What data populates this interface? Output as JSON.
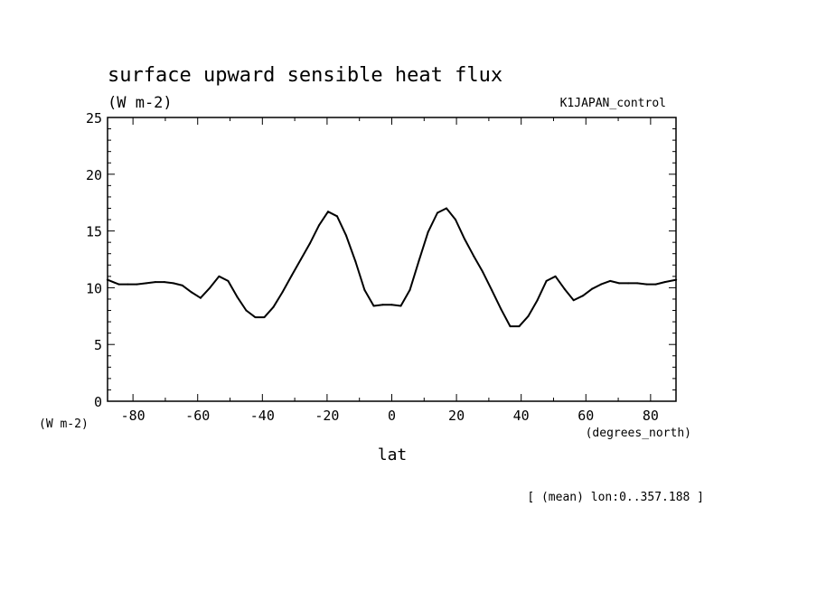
{
  "chart_data": {
    "type": "line",
    "title": "surface upward sensible heat flux",
    "units": "(W m-2)",
    "run_label": "K1JAPAN_control",
    "xlabel": "lat",
    "x_units": "(degrees_north)",
    "y_units": "(W m-2)",
    "footnote": "[ (mean) lon:0..357.188 ]",
    "xlim": [
      -87.86,
      87.86
    ],
    "ylim": [
      0,
      25
    ],
    "x_ticks": [
      {
        "value": -80,
        "label": "-80"
      },
      {
        "value": -60,
        "label": "-60"
      },
      {
        "value": -40,
        "label": "-40"
      },
      {
        "value": -20,
        "label": "-20"
      },
      {
        "value": 0,
        "label": "0"
      },
      {
        "value": 20,
        "label": "20"
      },
      {
        "value": 40,
        "label": "40"
      },
      {
        "value": 60,
        "label": "60"
      },
      {
        "value": 80,
        "label": "80"
      }
    ],
    "y_ticks": [
      {
        "value": 0,
        "label": "0"
      },
      {
        "value": 5,
        "label": "5"
      },
      {
        "value": 10,
        "label": "10"
      },
      {
        "value": 15,
        "label": "15"
      },
      {
        "value": 20,
        "label": "20"
      },
      {
        "value": 25,
        "label": "25"
      }
    ],
    "grid": false,
    "series": [
      {
        "x": [
          -87.9,
          -84.4,
          -81.6,
          -78.8,
          -75.9,
          -73.1,
          -70.3,
          -67.5,
          -64.7,
          -61.9,
          -59.1,
          -56.2,
          -53.4,
          -50.6,
          -47.8,
          -45.0,
          -42.2,
          -39.4,
          -36.6,
          -33.8,
          -30.9,
          -28.1,
          -25.3,
          -22.5,
          -19.7,
          -16.9,
          -14.1,
          -11.2,
          -8.4,
          -5.6,
          -2.8,
          0.0,
          2.8,
          5.6,
          8.4,
          11.2,
          14.1,
          16.9,
          19.7,
          22.5,
          25.3,
          28.1,
          30.9,
          33.8,
          36.6,
          39.4,
          42.2,
          45.0,
          47.8,
          50.6,
          53.4,
          56.2,
          59.1,
          61.9,
          64.7,
          67.5,
          70.3,
          73.1,
          75.9,
          78.8,
          81.6,
          84.4,
          87.9
        ],
        "y": [
          10.7,
          10.3,
          10.3,
          10.3,
          10.4,
          10.5,
          10.5,
          10.4,
          10.2,
          9.6,
          9.1,
          10.0,
          11.0,
          10.6,
          9.2,
          8.0,
          7.4,
          7.4,
          8.3,
          9.6,
          11.1,
          12.5,
          13.9,
          15.5,
          16.7,
          16.3,
          14.6,
          12.3,
          9.8,
          8.4,
          8.5,
          8.5,
          8.4,
          9.8,
          12.4,
          14.9,
          16.6,
          17.0,
          16.0,
          14.3,
          12.8,
          11.4,
          9.8,
          8.1,
          6.6,
          6.6,
          7.5,
          8.9,
          10.6,
          11.0,
          9.9,
          8.9,
          9.3,
          9.9,
          10.3,
          10.6,
          10.4,
          10.4,
          10.4,
          10.3,
          10.3,
          10.5,
          10.7
        ]
      }
    ]
  }
}
